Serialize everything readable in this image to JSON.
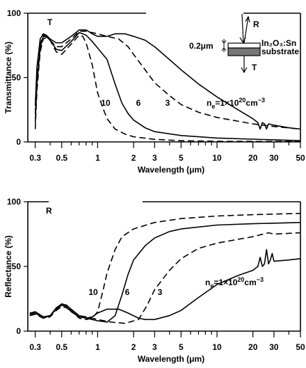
{
  "chart_data": [
    {
      "type": "line",
      "panel_label": "T",
      "xlabel": "Wavelength (μm)",
      "ylabel": "Transmittance (%)",
      "xscale": "log",
      "xlim": [
        0.26,
        50
      ],
      "ylim": [
        0,
        100
      ],
      "x_ticks": [
        "0.3",
        "0.5",
        "1",
        "2",
        "3",
        "5",
        "10",
        "20",
        "30",
        "50"
      ],
      "y_ticks": [
        "0",
        "50",
        "100"
      ],
      "grid": false,
      "annotations": {
        "labels": [
          "10",
          "6",
          "3"
        ],
        "ne": [
          "n",
          "e",
          "=1×10",
          "20",
          "cm",
          "−3"
        ]
      },
      "inset": {
        "film_thickness": "0.2μm",
        "film": "In₂O₃:Sn",
        "substrate": "substrate",
        "r": "R",
        "t": "T"
      },
      "series": [
        {
          "label": "10",
          "style": "dashed",
          "points": [
            [
              0.3,
              10
            ],
            [
              0.31,
              40
            ],
            [
              0.33,
              70
            ],
            [
              0.35,
              80
            ],
            [
              0.37,
              81
            ],
            [
              0.4,
              79
            ],
            [
              0.45,
              70
            ],
            [
              0.5,
              68
            ],
            [
              0.6,
              76
            ],
            [
              0.7,
              83
            ],
            [
              0.75,
              82
            ],
            [
              0.8,
              77
            ],
            [
              0.9,
              60
            ],
            [
              1.0,
              38
            ],
            [
              1.1,
              27
            ],
            [
              1.2,
              18
            ],
            [
              1.4,
              10
            ],
            [
              1.7,
              6
            ],
            [
              2,
              4
            ],
            [
              3,
              2
            ],
            [
              5,
              1
            ],
            [
              10,
              0.5
            ],
            [
              50,
              0.3
            ]
          ]
        },
        {
          "label": "6",
          "style": "solid",
          "points": [
            [
              0.3,
              15
            ],
            [
              0.31,
              45
            ],
            [
              0.33,
              73
            ],
            [
              0.35,
              82
            ],
            [
              0.37,
              82
            ],
            [
              0.4,
              79
            ],
            [
              0.45,
              72
            ],
            [
              0.5,
              71
            ],
            [
              0.6,
              78
            ],
            [
              0.7,
              85
            ],
            [
              0.8,
              83
            ],
            [
              0.9,
              78
            ],
            [
              1,
              73
            ],
            [
              1.2,
              64
            ],
            [
              1.4,
              45
            ],
            [
              1.6,
              30
            ],
            [
              1.8,
              22
            ],
            [
              2,
              17
            ],
            [
              2.5,
              11
            ],
            [
              3,
              8
            ],
            [
              5,
              5
            ],
            [
              10,
              3
            ],
            [
              50,
              1
            ]
          ]
        },
        {
          "label": "3",
          "style": "dashed",
          "points": [
            [
              0.3,
              22
            ],
            [
              0.31,
              52
            ],
            [
              0.33,
              76
            ],
            [
              0.35,
              83
            ],
            [
              0.37,
              82
            ],
            [
              0.4,
              79
            ],
            [
              0.45,
              74
            ],
            [
              0.5,
              74
            ],
            [
              0.6,
              80
            ],
            [
              0.7,
              86
            ],
            [
              0.8,
              86
            ],
            [
              1,
              84
            ],
            [
              1.2,
              82
            ],
            [
              1.5,
              80
            ],
            [
              1.8,
              74
            ],
            [
              2,
              68
            ],
            [
              2.5,
              56
            ],
            [
              3,
              46
            ],
            [
              4,
              36
            ],
            [
              5,
              29
            ],
            [
              7,
              23
            ],
            [
              10,
              19
            ],
            [
              20,
              14
            ],
            [
              30,
              12
            ],
            [
              50,
              10
            ]
          ]
        },
        {
          "label": "substrate",
          "style": "solid",
          "points": [
            [
              0.3,
              28
            ],
            [
              0.31,
              58
            ],
            [
              0.33,
              80
            ],
            [
              0.35,
              84
            ],
            [
              0.37,
              83
            ],
            [
              0.4,
              80
            ],
            [
              0.45,
              77
            ],
            [
              0.5,
              77
            ],
            [
              0.6,
              82
            ],
            [
              0.7,
              87
            ],
            [
              0.8,
              87
            ],
            [
              0.9,
              84
            ],
            [
              1,
              82
            ],
            [
              1.2,
              82
            ],
            [
              1.4,
              84
            ],
            [
              1.7,
              84
            ],
            [
              2,
              82
            ],
            [
              2.5,
              79
            ],
            [
              3,
              74
            ],
            [
              4,
              64
            ],
            [
              5,
              56
            ],
            [
              7,
              45
            ],
            [
              10,
              35
            ],
            [
              15,
              25
            ],
            [
              20,
              18
            ],
            [
              22,
              15
            ],
            [
              23,
              10
            ],
            [
              24,
              15
            ],
            [
              25,
              14
            ],
            [
              26,
              10
            ],
            [
              27,
              14
            ],
            [
              30,
              13
            ],
            [
              40,
              11
            ],
            [
              50,
              10
            ]
          ]
        }
      ]
    },
    {
      "type": "line",
      "panel_label": "R",
      "xlabel": "Wavelength (μm)",
      "ylabel": "Reflectance (%)",
      "xscale": "log",
      "xlim": [
        0.26,
        50
      ],
      "ylim": [
        0,
        100
      ],
      "x_ticks": [
        "0.3",
        "0.5",
        "1",
        "2",
        "3",
        "5",
        "10",
        "20",
        "30",
        "50"
      ],
      "y_ticks": [
        "0",
        "50",
        "100"
      ],
      "grid": false,
      "annotations": {
        "labels": [
          "10",
          "6",
          "3"
        ],
        "ne": [
          "n",
          "e",
          "=1×10",
          "20",
          "cm",
          "−3"
        ]
      },
      "series": [
        {
          "label": "10",
          "style": "dashed",
          "points": [
            [
              0.27,
              13
            ],
            [
              0.3,
              15
            ],
            [
              0.35,
              11
            ],
            [
              0.4,
              12
            ],
            [
              0.45,
              18
            ],
            [
              0.5,
              21
            ],
            [
              0.55,
              20
            ],
            [
              0.6,
              16
            ],
            [
              0.7,
              10
            ],
            [
              0.8,
              9
            ],
            [
              0.9,
              10
            ],
            [
              1,
              15
            ],
            [
              1.1,
              30
            ],
            [
              1.2,
              45
            ],
            [
              1.4,
              63
            ],
            [
              1.6,
              73
            ],
            [
              2,
              79
            ],
            [
              3,
              84
            ],
            [
              5,
              87
            ],
            [
              10,
              89
            ],
            [
              20,
              90
            ],
            [
              50,
              91
            ]
          ]
        },
        {
          "label": "6",
          "style": "solid",
          "points": [
            [
              0.27,
              13
            ],
            [
              0.3,
              14
            ],
            [
              0.35,
              10
            ],
            [
              0.4,
              12
            ],
            [
              0.45,
              17
            ],
            [
              0.5,
              20
            ],
            [
              0.55,
              19
            ],
            [
              0.6,
              15
            ],
            [
              0.7,
              11
            ],
            [
              0.8,
              10
            ],
            [
              0.9,
              9
            ],
            [
              1,
              8
            ],
            [
              1.2,
              7
            ],
            [
              1.4,
              12
            ],
            [
              1.6,
              28
            ],
            [
              1.8,
              44
            ],
            [
              2,
              55
            ],
            [
              2.5,
              66
            ],
            [
              3,
              72
            ],
            [
              4,
              77
            ],
            [
              5,
              79
            ],
            [
              10,
              82
            ],
            [
              20,
              83
            ],
            [
              50,
              84
            ]
          ]
        },
        {
          "label": "3",
          "style": "dashed",
          "points": [
            [
              0.27,
              12
            ],
            [
              0.3,
              13
            ],
            [
              0.35,
              10
            ],
            [
              0.4,
              11
            ],
            [
              0.45,
              16
            ],
            [
              0.5,
              19
            ],
            [
              0.55,
              18
            ],
            [
              0.6,
              15
            ],
            [
              0.7,
              12
            ],
            [
              0.8,
              11
            ],
            [
              0.9,
              10
            ],
            [
              1,
              9
            ],
            [
              1.3,
              7
            ],
            [
              1.7,
              6
            ],
            [
              2.2,
              9
            ],
            [
              2.6,
              20
            ],
            [
              3,
              32
            ],
            [
              4,
              47
            ],
            [
              5,
              56
            ],
            [
              7,
              64
            ],
            [
              10,
              68
            ],
            [
              20,
              73
            ],
            [
              27,
              76
            ],
            [
              30,
              75
            ],
            [
              50,
              76
            ]
          ]
        },
        {
          "label": "substrate",
          "style": "solid",
          "points": [
            [
              0.27,
              14
            ],
            [
              0.3,
              15
            ],
            [
              0.35,
              11
            ],
            [
              0.4,
              12
            ],
            [
              0.45,
              18
            ],
            [
              0.5,
              21
            ],
            [
              0.55,
              20
            ],
            [
              0.6,
              17
            ],
            [
              0.7,
              12
            ],
            [
              0.8,
              10
            ],
            [
              0.9,
              11
            ],
            [
              1,
              14
            ],
            [
              1.2,
              17
            ],
            [
              1.5,
              17
            ],
            [
              1.8,
              14
            ],
            [
              2.2,
              10
            ],
            [
              2.5,
              9
            ],
            [
              3,
              9
            ],
            [
              4,
              12
            ],
            [
              5,
              16
            ],
            [
              7,
              26
            ],
            [
              10,
              36
            ],
            [
              15,
              43
            ],
            [
              20,
              47
            ],
            [
              22,
              50
            ],
            [
              23,
              57
            ],
            [
              24,
              50
            ],
            [
              25,
              52
            ],
            [
              26,
              63
            ],
            [
              27,
              52
            ],
            [
              28,
              55
            ],
            [
              29,
              60
            ],
            [
              30,
              54
            ],
            [
              40,
              55
            ],
            [
              50,
              56
            ]
          ]
        }
      ]
    }
  ]
}
